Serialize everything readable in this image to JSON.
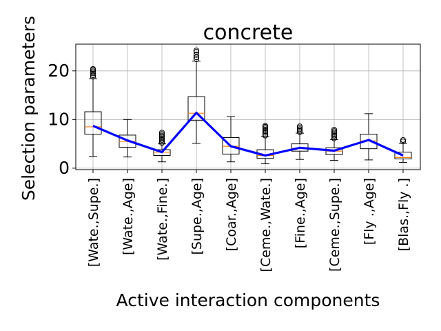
{
  "chart_data": {
    "type": "box",
    "title": "concrete",
    "xlabel": "Active interaction components",
    "ylabel": "Selection parameters",
    "ylim": [
      -0.3,
      25.5
    ],
    "yticks": [
      0,
      10,
      20
    ],
    "grid": true,
    "categories": [
      "[Wate.,Supe.]",
      "[Wate.,Age]",
      "[Wate.,Fine.]",
      "[Supe.,Age]",
      "[Coar.,Age]",
      "[Ceme.,Wate.]",
      "[Fine.,Age]",
      "[Ceme.,Supe.]",
      "[Fly .,Age]",
      "[Blas.,Fly .]"
    ],
    "boxes": [
      {
        "whislo": 2.4,
        "q1": 7.0,
        "med": 8.5,
        "q3": 11.6,
        "whishi": 18.4,
        "fliers": [
          18.8,
          19.1,
          19.5,
          19.9,
          20.2,
          20.4
        ]
      },
      {
        "whislo": 2.3,
        "q1": 4.3,
        "med": 5.5,
        "q3": 6.8,
        "whishi": 10.0,
        "fliers": []
      },
      {
        "whislo": 1.3,
        "q1": 2.6,
        "med": 3.3,
        "q3": 3.8,
        "whishi": 5.0,
        "fliers": [
          5.2,
          5.5,
          5.8,
          6.1,
          6.4,
          6.7,
          7.0,
          7.3
        ]
      },
      {
        "whislo": 5.1,
        "q1": 9.8,
        "med": 11.3,
        "q3": 14.7,
        "whishi": 22.0,
        "fliers": [
          22.4,
          22.8,
          23.3,
          23.9,
          24.2
        ]
      },
      {
        "whislo": 1.3,
        "q1": 2.9,
        "med": 4.5,
        "q3": 6.3,
        "whishi": 10.6,
        "fliers": []
      },
      {
        "whislo": 0.9,
        "q1": 2.0,
        "med": 2.6,
        "q3": 3.8,
        "whishi": 6.5,
        "fliers": [
          6.7,
          7.0,
          7.3,
          7.6,
          7.9,
          8.2,
          8.5,
          8.7
        ]
      },
      {
        "whislo": 1.8,
        "q1": 3.5,
        "med": 4.1,
        "q3": 5.0,
        "whishi": 7.2,
        "fliers": [
          7.4,
          7.7,
          8.0,
          8.3,
          8.6
        ]
      },
      {
        "whislo": 1.6,
        "q1": 2.8,
        "med": 3.5,
        "q3": 4.2,
        "whishi": 5.9,
        "fliers": [
          6.1,
          6.4,
          6.7,
          7.0,
          7.3,
          7.6,
          7.9
        ]
      },
      {
        "whislo": 1.7,
        "q1": 4.0,
        "med": 5.6,
        "q3": 7.0,
        "whishi": 11.2,
        "fliers": []
      },
      {
        "whislo": 1.2,
        "q1": 1.9,
        "med": 2.2,
        "q3": 3.3,
        "whishi": 5.1,
        "fliers": [
          5.5,
          5.8
        ]
      }
    ],
    "line": {
      "values": [
        8.7,
        5.7,
        3.3,
        11.4,
        4.5,
        2.6,
        4.2,
        3.6,
        5.8,
        2.6
      ],
      "color": "#0000ff"
    },
    "colors": {
      "box": "#000000",
      "median": "#ff7f0e",
      "grid": "#b0b0b0",
      "line": "#0000ff"
    }
  }
}
